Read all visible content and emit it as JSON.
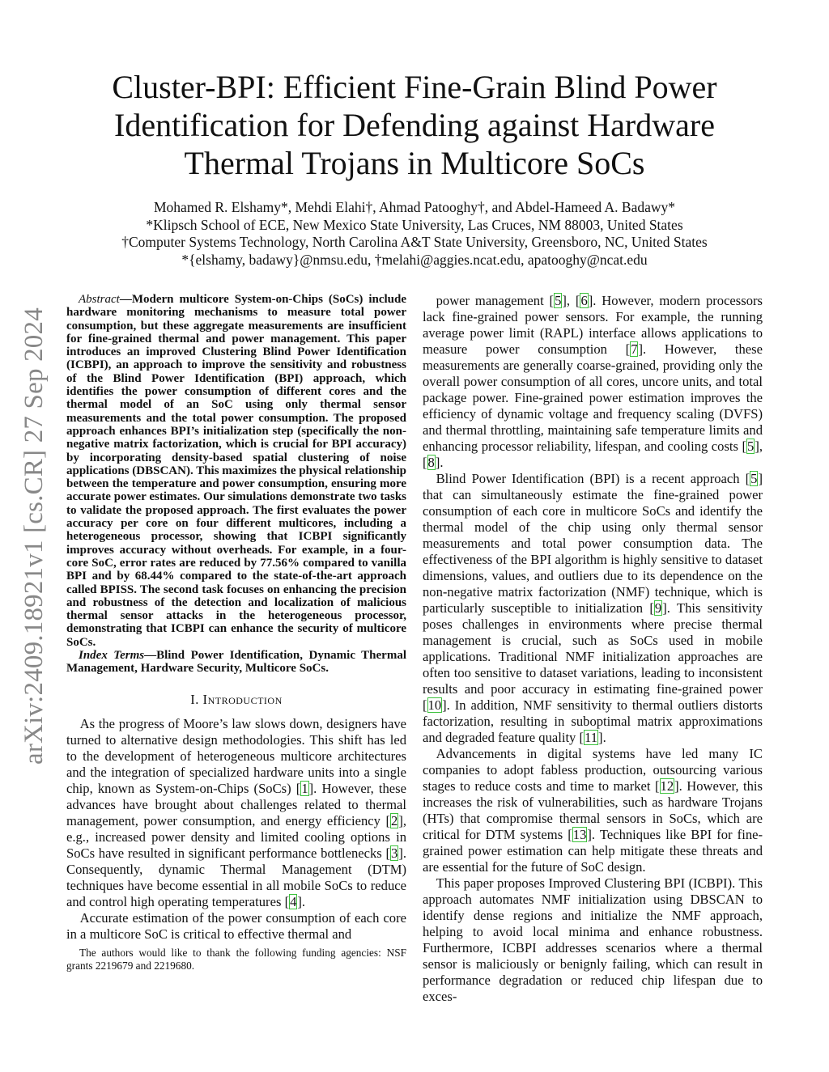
{
  "title_lines": [
    "Cluster-BPI: Efficient Fine-Grain Blind Power",
    "Identification for Defending against Hardware",
    "Thermal Trojans in Multicore SoCs"
  ],
  "authors": "Mohamed R. Elshamy*, Mehdi Elahi†, Ahmad Patooghy†, and Abdel-Hameed A. Badawy*",
  "affiliations": [
    "*Klipsch School of ECE, New Mexico State University, Las Cruces, NM 88003, United States",
    "†Computer Systems Technology, North Carolina A&T State University, Greensboro, NC, United States",
    "*{elshamy, badawy}@nmsu.edu, †melahi@aggies.ncat.edu, apatooghy@ncat.edu"
  ],
  "arxiv_id": "arXiv:2409.18921v1  [cs.CR]  27 Sep 2024",
  "abstract_label": "Abstract",
  "abstract": "—Modern multicore System-on-Chips (SoCs) include hardware monitoring mechanisms to measure total power consumption, but these aggregate measurements are insufficient for fine-grained thermal and power management. This paper introduces an improved Clustering Blind Power Identification (ICBPI), an approach to improve the sensitivity and robustness of the Blind Power Identification (BPI) approach, which identifies the power consumption of different cores and the thermal model of an SoC using only thermal sensor measurements and the total power consumption. The proposed approach enhances BPI’s initialization step (specifically the non-negative matrix factorization, which is crucial for BPI accuracy) by incorporating density-based spatial clustering of noise applications (DBSCAN). This maximizes the physical relationship between the temperature and power consumption, ensuring more accurate power estimates. Our simulations demonstrate two tasks to validate the proposed approach. The first evaluates the power accuracy per core on four different multicores, including a heterogeneous processor, showing that ICBPI significantly improves accuracy without overheads. For example, in a four-core SoC, error rates are reduced by 77.56% compared to vanilla BPI and by 68.44% compared to the state-of-the-art approach called BPISS. The second task focuses on enhancing the precision and robustness of the detection and localization of malicious thermal sensor attacks in the heterogeneous processor, demonstrating that ICBPI can enhance the security of multicore SoCs.",
  "index_terms_label": "Index Terms",
  "index_terms": "—Blind Power Identification, Dynamic Thermal Management, Hardware Security, Multicore SoCs.",
  "section_heading": "I. Introduction",
  "left_paragraphs": [
    [
      "As the progress of Moore’s law slows down, designers have turned to alternative design methodologies. This shift has led to the development of heterogeneous multicore architectures and the integration of specialized hardware units into a single chip, known as System-on-Chips (SoCs)  ",
      {
        "cite": "1"
      },
      ". However, these advances have brought about challenges related to thermal management, power consumption, and energy efficiency ",
      {
        "cite": "2"
      },
      ", e.g., increased power density and limited cooling options in SoCs have resulted in significant performance bottlenecks ",
      {
        "cite": "3"
      },
      ". Consequently, dynamic Thermal Management (DTM) techniques have become essential in all mobile SoCs to reduce and control high operating temperatures ",
      {
        "cite": "4"
      },
      "."
    ],
    [
      "Accurate estimation of the power consumption of each core in a multicore SoC is critical to effective thermal and"
    ]
  ],
  "right_paragraphs": [
    [
      "power management ",
      {
        "cite": "5"
      },
      ", ",
      {
        "cite": "6"
      },
      ". However, modern processors lack fine-grained power sensors. For example, the running average power limit (RAPL) interface allows applications to measure power consumption ",
      {
        "cite": "7"
      },
      ". However, these measurements are generally coarse-grained, providing only the overall power consumption of all cores, uncore units, and total package power. Fine-grained power estimation improves the efficiency of dynamic voltage and frequency scaling (DVFS) and thermal throttling, maintaining safe temperature limits and enhancing processor reliability, lifespan, and cooling costs ",
      {
        "cite": "5"
      },
      ", ",
      {
        "cite": "8"
      },
      "."
    ],
    [
      "Blind Power Identification (BPI) is a recent approach ",
      {
        "cite": "5"
      },
      " that can simultaneously estimate the fine-grained power consumption of each core in multicore SoCs and identify the thermal model of the chip using only thermal sensor measurements and total power consumption data. The effectiveness of the BPI algorithm is highly sensitive to dataset dimensions, values, and outliers due to its dependence on the non-negative matrix factorization (NMF) technique, which is particularly susceptible to initialization ",
      {
        "cite": "9"
      },
      ". This sensitivity poses challenges in environments where precise thermal management is crucial, such as SoCs used in mobile applications. Traditional NMF initialization approaches are often too sensitive to dataset variations, leading to inconsistent results and poor accuracy in estimating fine-grained power ",
      {
        "cite": "10"
      },
      ". In addition, NMF sensitivity to thermal outliers distorts factorization, resulting in suboptimal matrix approximations and degraded feature quality ",
      {
        "cite": "11"
      },
      "."
    ],
    [
      "Advancements in digital systems have led many IC companies to adopt fabless production, outsourcing various stages to reduce costs and time to market ",
      {
        "cite": "12"
      },
      ". However, this increases the risk of vulnerabilities, such as hardware Trojans (HTs) that compromise thermal sensors in SoCs, which are critical for DTM systems ",
      {
        "cite": "13"
      },
      ". Techniques like BPI for fine-grained power estimation can help mitigate these threats and are essential for the future of SoC design."
    ],
    [
      "This paper proposes Improved Clustering BPI (ICBPI). This approach automates NMF initialization using DBSCAN to identify dense regions and initialize the NMF approach, helping to avoid local minima and enhance robustness. Furthermore, ICBPI addresses scenarios where a thermal sensor is maliciously or benignly failing, which can result in performance degradation or reduced chip lifespan due to exces-"
    ]
  ],
  "footnote": "The authors would like to thank the following funding agencies: NSF grants 2219679 and 2219680.",
  "colors": {
    "citation_box": "#3cc13c",
    "arxiv_stamp": "#888888"
  }
}
